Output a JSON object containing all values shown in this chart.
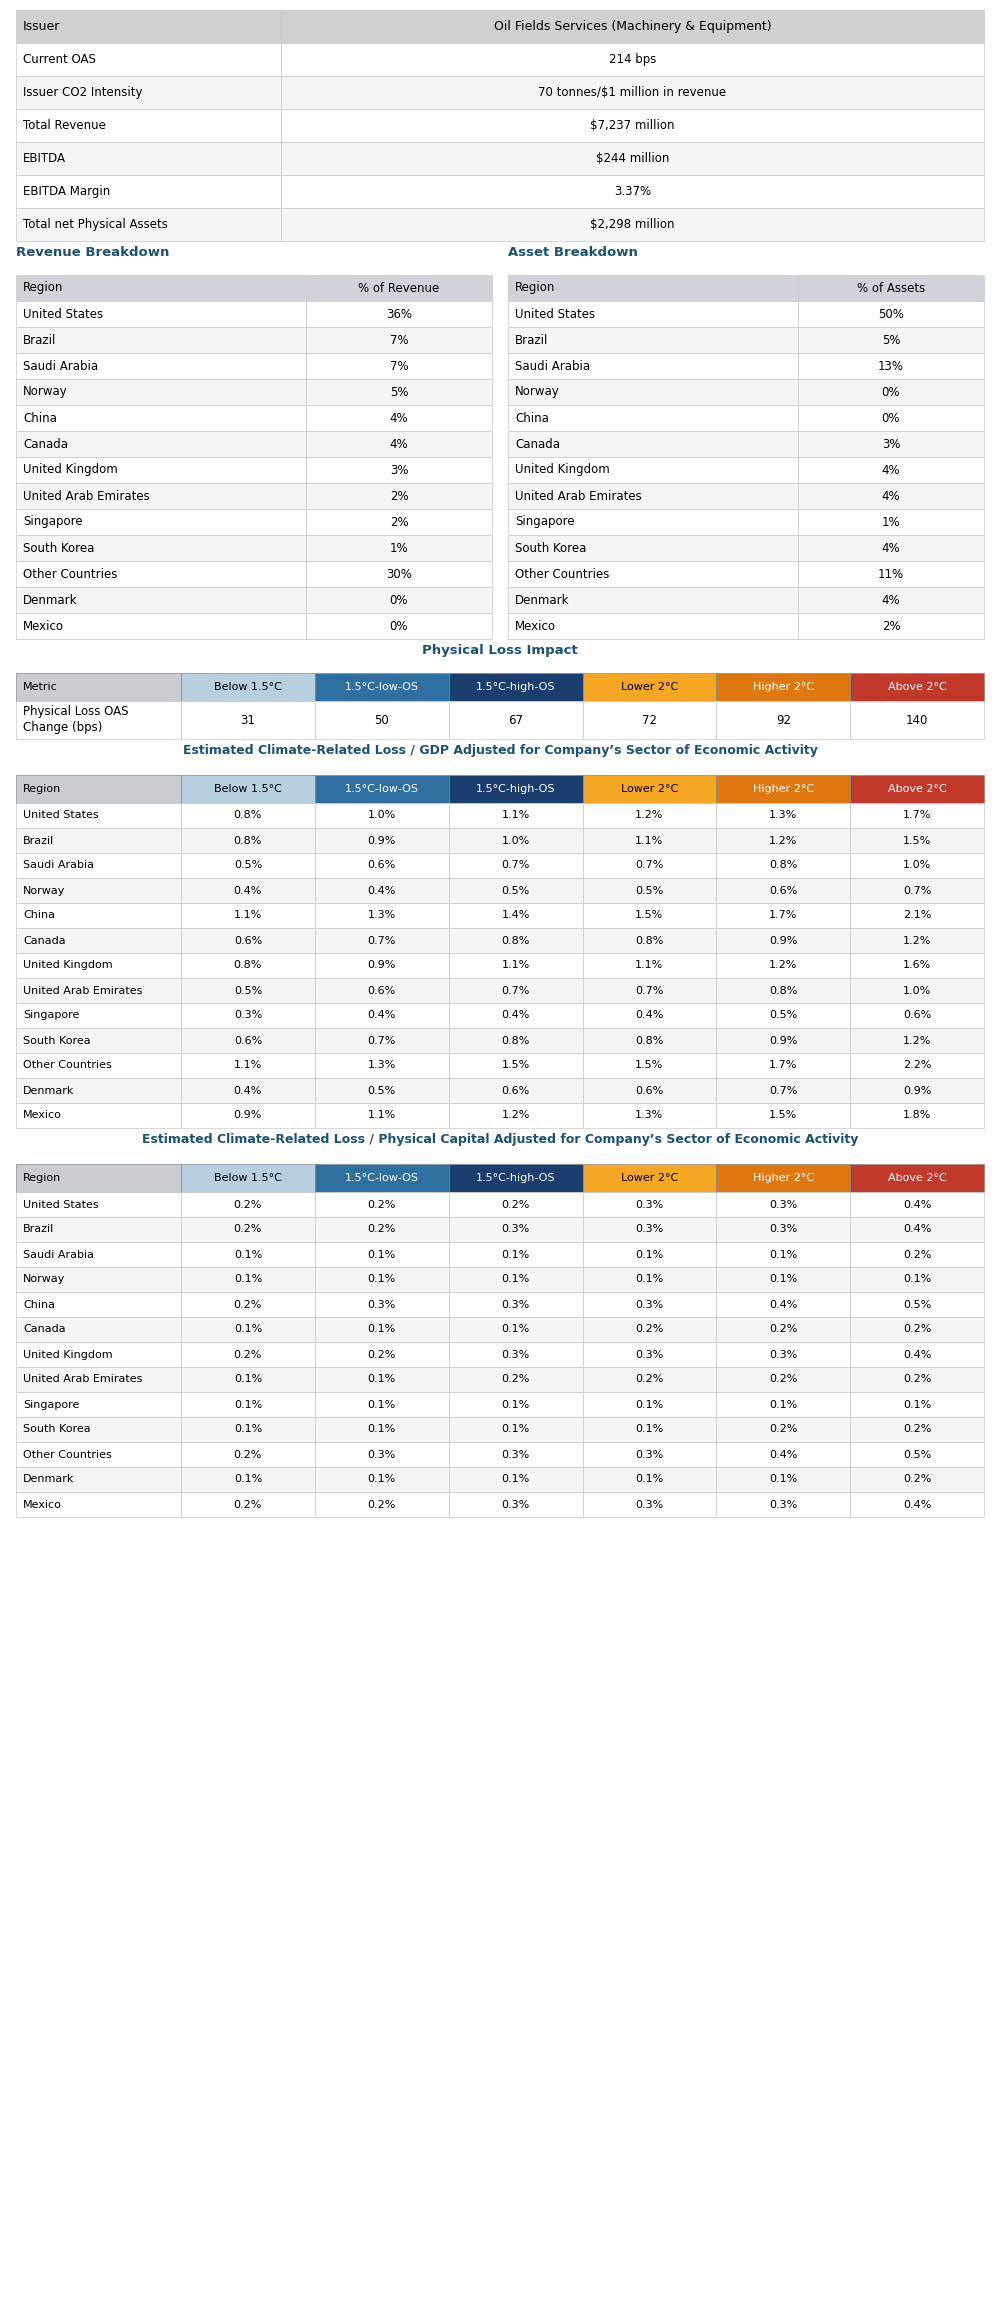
{
  "issuer_info": [
    [
      "Issuer",
      "Oil Fields Services (Machinery & Equipment)"
    ],
    [
      "Current OAS",
      "214 bps"
    ],
    [
      "Issuer CO2 Intensity",
      "70 tonnes/$1 million in revenue"
    ],
    [
      "Total Revenue",
      "$7,237 million"
    ],
    [
      "EBITDA",
      "$244 million"
    ],
    [
      "EBITDA Margin",
      "3.37%"
    ],
    [
      "Total net Physical Assets",
      "$2,298 million"
    ]
  ],
  "revenue_breakdown": {
    "header": [
      "Region",
      "% of Revenue"
    ],
    "rows": [
      [
        "United States",
        "36%"
      ],
      [
        "Brazil",
        "7%"
      ],
      [
        "Saudi Arabia",
        "7%"
      ],
      [
        "Norway",
        "5%"
      ],
      [
        "China",
        "4%"
      ],
      [
        "Canada",
        "4%"
      ],
      [
        "United Kingdom",
        "3%"
      ],
      [
        "United Arab Emirates",
        "2%"
      ],
      [
        "Singapore",
        "2%"
      ],
      [
        "South Korea",
        "1%"
      ],
      [
        "Other Countries",
        "30%"
      ],
      [
        "Denmark",
        "0%"
      ],
      [
        "Mexico",
        "0%"
      ]
    ]
  },
  "asset_breakdown": {
    "header": [
      "Region",
      "% of Assets"
    ],
    "rows": [
      [
        "United States",
        "50%"
      ],
      [
        "Brazil",
        "5%"
      ],
      [
        "Saudi Arabia",
        "13%"
      ],
      [
        "Norway",
        "0%"
      ],
      [
        "China",
        "0%"
      ],
      [
        "Canada",
        "3%"
      ],
      [
        "United Kingdom",
        "4%"
      ],
      [
        "United Arab Emirates",
        "4%"
      ],
      [
        "Singapore",
        "1%"
      ],
      [
        "South Korea",
        "4%"
      ],
      [
        "Other Countries",
        "11%"
      ],
      [
        "Denmark",
        "4%"
      ],
      [
        "Mexico",
        "2%"
      ]
    ]
  },
  "physical_loss_title": "Physical Loss Impact",
  "physical_loss_header": [
    "Metric",
    "Below 1.5°C",
    "1.5°C-low-OS",
    "1.5°C-high-OS",
    "Lower 2°C",
    "Higher 2°C",
    "Above 2°C"
  ],
  "physical_loss_row": [
    "Physical Loss OAS\nChange (bps)",
    "31",
    "50",
    "67",
    "72",
    "92",
    "140"
  ],
  "gdp_title": "Estimated Climate-Related Loss / GDP Adjusted for Company’s Sector of Economic Activity",
  "gdp_header": [
    "Region",
    "Below 1.5°C",
    "1.5°C-low-OS",
    "1.5°C-high-OS",
    "Lower 2°C",
    "Higher 2°C",
    "Above 2°C"
  ],
  "gdp_rows": [
    [
      "United States",
      "0.8%",
      "1.0%",
      "1.1%",
      "1.2%",
      "1.3%",
      "1.7%"
    ],
    [
      "Brazil",
      "0.8%",
      "0.9%",
      "1.0%",
      "1.1%",
      "1.2%",
      "1.5%"
    ],
    [
      "Saudi Arabia",
      "0.5%",
      "0.6%",
      "0.7%",
      "0.7%",
      "0.8%",
      "1.0%"
    ],
    [
      "Norway",
      "0.4%",
      "0.4%",
      "0.5%",
      "0.5%",
      "0.6%",
      "0.7%"
    ],
    [
      "China",
      "1.1%",
      "1.3%",
      "1.4%",
      "1.5%",
      "1.7%",
      "2.1%"
    ],
    [
      "Canada",
      "0.6%",
      "0.7%",
      "0.8%",
      "0.8%",
      "0.9%",
      "1.2%"
    ],
    [
      "United Kingdom",
      "0.8%",
      "0.9%",
      "1.1%",
      "1.1%",
      "1.2%",
      "1.6%"
    ],
    [
      "United Arab Emirates",
      "0.5%",
      "0.6%",
      "0.7%",
      "0.7%",
      "0.8%",
      "1.0%"
    ],
    [
      "Singapore",
      "0.3%",
      "0.4%",
      "0.4%",
      "0.4%",
      "0.5%",
      "0.6%"
    ],
    [
      "South Korea",
      "0.6%",
      "0.7%",
      "0.8%",
      "0.8%",
      "0.9%",
      "1.2%"
    ],
    [
      "Other Countries",
      "1.1%",
      "1.3%",
      "1.5%",
      "1.5%",
      "1.7%",
      "2.2%"
    ],
    [
      "Denmark",
      "0.4%",
      "0.5%",
      "0.6%",
      "0.6%",
      "0.7%",
      "0.9%"
    ],
    [
      "Mexico",
      "0.9%",
      "1.1%",
      "1.2%",
      "1.3%",
      "1.5%",
      "1.8%"
    ]
  ],
  "physical_capital_title": "Estimated Climate-Related Loss / Physical Capital Adjusted for Company’s Sector of Economic Activity",
  "physical_capital_header": [
    "Region",
    "Below 1.5°C",
    "1.5°C-low-OS",
    "1.5°C-high-OS",
    "Lower 2°C",
    "Higher 2°C",
    "Above 2°C"
  ],
  "physical_capital_rows": [
    [
      "United States",
      "0.2%",
      "0.2%",
      "0.2%",
      "0.3%",
      "0.3%",
      "0.4%"
    ],
    [
      "Brazil",
      "0.2%",
      "0.2%",
      "0.3%",
      "0.3%",
      "0.3%",
      "0.4%"
    ],
    [
      "Saudi Arabia",
      "0.1%",
      "0.1%",
      "0.1%",
      "0.1%",
      "0.1%",
      "0.2%"
    ],
    [
      "Norway",
      "0.1%",
      "0.1%",
      "0.1%",
      "0.1%",
      "0.1%",
      "0.1%"
    ],
    [
      "China",
      "0.2%",
      "0.3%",
      "0.3%",
      "0.3%",
      "0.4%",
      "0.5%"
    ],
    [
      "Canada",
      "0.1%",
      "0.1%",
      "0.1%",
      "0.2%",
      "0.2%",
      "0.2%"
    ],
    [
      "United Kingdom",
      "0.2%",
      "0.2%",
      "0.3%",
      "0.3%",
      "0.3%",
      "0.4%"
    ],
    [
      "United Arab Emirates",
      "0.1%",
      "0.1%",
      "0.2%",
      "0.2%",
      "0.2%",
      "0.2%"
    ],
    [
      "Singapore",
      "0.1%",
      "0.1%",
      "0.1%",
      "0.1%",
      "0.1%",
      "0.1%"
    ],
    [
      "South Korea",
      "0.1%",
      "0.1%",
      "0.1%",
      "0.1%",
      "0.2%",
      "0.2%"
    ],
    [
      "Other Countries",
      "0.2%",
      "0.3%",
      "0.3%",
      "0.3%",
      "0.4%",
      "0.5%"
    ],
    [
      "Denmark",
      "0.1%",
      "0.1%",
      "0.1%",
      "0.1%",
      "0.1%",
      "0.2%"
    ],
    [
      "Mexico",
      "0.2%",
      "0.2%",
      "0.3%",
      "0.3%",
      "0.3%",
      "0.4%"
    ]
  ],
  "col_colors": [
    "#c8cdd2",
    "#b8cfe0",
    "#3070a0",
    "#1a3f6f",
    "#f5a623",
    "#e07810",
    "#c0392b"
  ],
  "col_text_colors": [
    "#000000",
    "#000000",
    "#ffffff",
    "#ffffff",
    "#000000",
    "#ffffff",
    "#ffffff"
  ],
  "section_title_color": "#1a5276",
  "revenue_breakdown_title": "Revenue Breakdown",
  "asset_breakdown_title": "Asset Breakdown",
  "issuer_header_bg": "#d0d0d0",
  "issuer_row_bg_even": "#ffffff",
  "issuer_row_bg_odd": "#f5f5f5",
  "table_header_bg": "#d0d4d8",
  "row_bg_white": "#ffffff",
  "row_bg_light": "#f5f5f5",
  "border_color": "#c8c8c8"
}
